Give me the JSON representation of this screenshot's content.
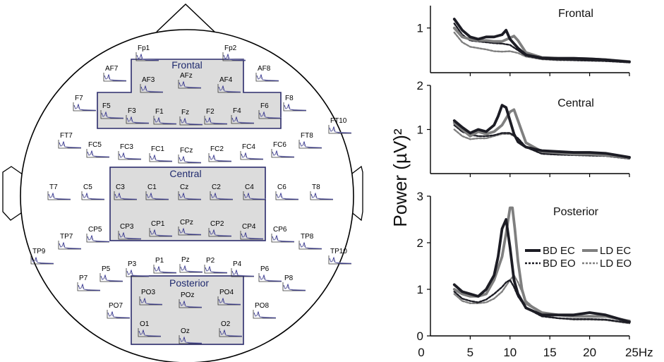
{
  "head_map": {
    "regions": [
      {
        "id": "frontal",
        "title": "Frontal"
      },
      {
        "id": "central",
        "title": "Central"
      },
      {
        "id": "posterior",
        "title": "Posterior"
      }
    ],
    "electrodes": [
      "Fp1",
      "Fp2",
      "AF7",
      "AF3",
      "AFz",
      "AF4",
      "AF8",
      "F7",
      "F5",
      "F3",
      "F1",
      "Fz",
      "F2",
      "F4",
      "F6",
      "F8",
      "FT10",
      "FT7",
      "FC5",
      "FC3",
      "FC1",
      "FCz",
      "FC2",
      "FC4",
      "FC6",
      "FT8",
      "T7",
      "C5",
      "C3",
      "C1",
      "Cz",
      "C2",
      "C4",
      "C6",
      "T8",
      "TP7",
      "CP5",
      "CP3",
      "CP1",
      "CPz",
      "CP2",
      "CP4",
      "CP6",
      "TP8",
      "TP9",
      "TP10",
      "P7",
      "P5",
      "P3",
      "P1",
      "Pz",
      "P2",
      "P4",
      "P6",
      "P8",
      "PO7",
      "PO3",
      "POz",
      "PO4",
      "PO8",
      "O1",
      "Oz",
      "O2"
    ]
  },
  "chart_data": [
    {
      "type": "line",
      "title": "Frontal",
      "xlim": [
        0,
        25
      ],
      "ylim": [
        0,
        1.5
      ],
      "yticks": [
        1
      ],
      "xticks": [],
      "series": [
        {
          "name": "BD EC",
          "x": [
            3,
            4,
            5,
            6,
            7,
            8,
            9,
            9.5,
            10,
            11,
            12,
            14,
            16,
            18,
            20,
            22,
            25
          ],
          "y": [
            1.2,
            0.95,
            0.8,
            0.75,
            0.8,
            0.8,
            0.85,
            0.95,
            0.75,
            0.55,
            0.4,
            0.33,
            0.32,
            0.32,
            0.31,
            0.29,
            0.24
          ]
        },
        {
          "name": "LD EC",
          "x": [
            3,
            4,
            5,
            6,
            7,
            8,
            9,
            10,
            10.5,
            11,
            12,
            14,
            16,
            18,
            20,
            22,
            25
          ],
          "y": [
            1.0,
            0.8,
            0.75,
            0.72,
            0.72,
            0.7,
            0.7,
            0.78,
            0.82,
            0.72,
            0.45,
            0.34,
            0.32,
            0.32,
            0.31,
            0.29,
            0.25
          ]
        },
        {
          "name": "BD EO",
          "x": [
            3,
            4,
            5,
            6,
            7,
            8,
            9,
            10,
            11,
            12,
            14,
            16,
            18,
            20,
            22,
            25
          ],
          "y": [
            1.1,
            0.85,
            0.72,
            0.7,
            0.68,
            0.66,
            0.65,
            0.62,
            0.5,
            0.38,
            0.31,
            0.29,
            0.28,
            0.27,
            0.26,
            0.23
          ]
        },
        {
          "name": "LD EO",
          "x": [
            3,
            4,
            5,
            6,
            7,
            8,
            9,
            10,
            11,
            12,
            14,
            16,
            18,
            20,
            22,
            25
          ],
          "y": [
            0.9,
            0.68,
            0.58,
            0.55,
            0.52,
            0.48,
            0.47,
            0.48,
            0.44,
            0.36,
            0.3,
            0.28,
            0.28,
            0.27,
            0.26,
            0.23
          ]
        }
      ]
    },
    {
      "type": "line",
      "title": "Central",
      "xlim": [
        0,
        25
      ],
      "ylim": [
        0,
        2
      ],
      "yticks": [
        1,
        2
      ],
      "xticks": [],
      "series": [
        {
          "name": "BD EC",
          "x": [
            3,
            4,
            5,
            6,
            7,
            8,
            8.5,
            9,
            9.5,
            10,
            10.5,
            11,
            12,
            14,
            16,
            18,
            20,
            22,
            25
          ],
          "y": [
            1.2,
            1.05,
            0.92,
            1.0,
            0.95,
            1.1,
            1.3,
            1.55,
            1.5,
            1.2,
            0.9,
            0.72,
            0.6,
            0.52,
            0.5,
            0.48,
            0.48,
            0.46,
            0.37
          ]
        },
        {
          "name": "LD EC",
          "x": [
            3,
            4,
            5,
            6,
            7,
            8,
            9,
            10,
            10.5,
            11,
            11.5,
            12,
            14,
            16,
            18,
            20,
            22,
            25
          ],
          "y": [
            1.15,
            1.0,
            0.85,
            0.95,
            0.9,
            0.95,
            1.1,
            1.4,
            1.45,
            1.2,
            0.95,
            0.7,
            0.5,
            0.47,
            0.44,
            0.44,
            0.42,
            0.36
          ]
        },
        {
          "name": "BD EO",
          "x": [
            3,
            4,
            5,
            6,
            7,
            8,
            9,
            10,
            11,
            12,
            14,
            16,
            18,
            20,
            22,
            25
          ],
          "y": [
            1.1,
            0.95,
            0.88,
            0.85,
            0.85,
            0.87,
            0.92,
            0.92,
            0.8,
            0.6,
            0.45,
            0.43,
            0.42,
            0.41,
            0.4,
            0.34
          ]
        },
        {
          "name": "LD EO",
          "x": [
            3,
            4,
            5,
            6,
            7,
            8,
            9,
            10,
            11,
            12,
            14,
            16,
            18,
            20,
            22,
            25
          ],
          "y": [
            1.0,
            0.85,
            0.78,
            0.8,
            0.8,
            0.85,
            0.9,
            0.9,
            0.8,
            0.6,
            0.45,
            0.43,
            0.42,
            0.41,
            0.4,
            0.34
          ]
        }
      ]
    },
    {
      "type": "line",
      "title": "Posterior",
      "xlim": [
        0,
        25
      ],
      "ylim": [
        0,
        3
      ],
      "yticks": [
        0,
        1,
        2,
        3
      ],
      "xticks": [
        5,
        10,
        15,
        20,
        25
      ],
      "xtick_labels": [
        "5",
        "10",
        "15",
        "20",
        "25Hz"
      ],
      "series": [
        {
          "name": "BD EC",
          "x": [
            3,
            4,
            5,
            6,
            7,
            8,
            8.5,
            9,
            9.5,
            10,
            10.5,
            11,
            12,
            14,
            16,
            18,
            20,
            22,
            25
          ],
          "y": [
            1.1,
            0.95,
            0.9,
            0.85,
            1.0,
            1.3,
            1.7,
            2.3,
            2.5,
            1.9,
            1.2,
            0.9,
            0.6,
            0.45,
            0.45,
            0.45,
            0.5,
            0.45,
            0.3
          ]
        },
        {
          "name": "LD EC",
          "x": [
            3,
            4,
            5,
            6,
            7,
            8,
            9,
            9.5,
            10,
            10.3,
            10.6,
            11,
            11.5,
            12,
            14,
            16,
            18,
            20,
            22,
            25
          ],
          "y": [
            1.0,
            0.9,
            0.85,
            0.85,
            0.9,
            1.2,
            1.7,
            2.2,
            2.75,
            2.75,
            2.3,
            1.6,
            1.0,
            0.7,
            0.5,
            0.45,
            0.42,
            0.42,
            0.42,
            0.32
          ]
        },
        {
          "name": "BD EO",
          "x": [
            3,
            4,
            5,
            6,
            7,
            8,
            9,
            9.5,
            10,
            10.5,
            11,
            12,
            14,
            16,
            18,
            20,
            22,
            25
          ],
          "y": [
            0.95,
            0.8,
            0.75,
            0.72,
            0.78,
            0.9,
            1.05,
            1.15,
            1.2,
            1.05,
            0.85,
            0.6,
            0.42,
            0.38,
            0.36,
            0.36,
            0.35,
            0.28
          ]
        },
        {
          "name": "LD EO",
          "x": [
            3,
            4,
            5,
            6,
            7,
            8,
            9,
            10,
            10.5,
            11,
            12,
            14,
            16,
            18,
            20,
            22,
            25
          ],
          "y": [
            0.9,
            0.75,
            0.7,
            0.7,
            0.72,
            0.8,
            0.95,
            1.2,
            1.3,
            1.15,
            0.75,
            0.45,
            0.38,
            0.35,
            0.35,
            0.34,
            0.27
          ]
        }
      ]
    }
  ],
  "axis": {
    "ylabel": "Power (µV)²",
    "x_zero_label": "0"
  },
  "legend": {
    "entries": [
      {
        "name": "BD EC"
      },
      {
        "name": "LD EC"
      },
      {
        "name": "BD EO"
      },
      {
        "name": "LD EO"
      }
    ]
  },
  "colors": {
    "bd": "#1c1c24",
    "ld": "#7f7f7f",
    "region_fill": "#dcdcdc",
    "region_stroke": "#2b2b6b",
    "electrode_trace": "#2a2a8a"
  }
}
